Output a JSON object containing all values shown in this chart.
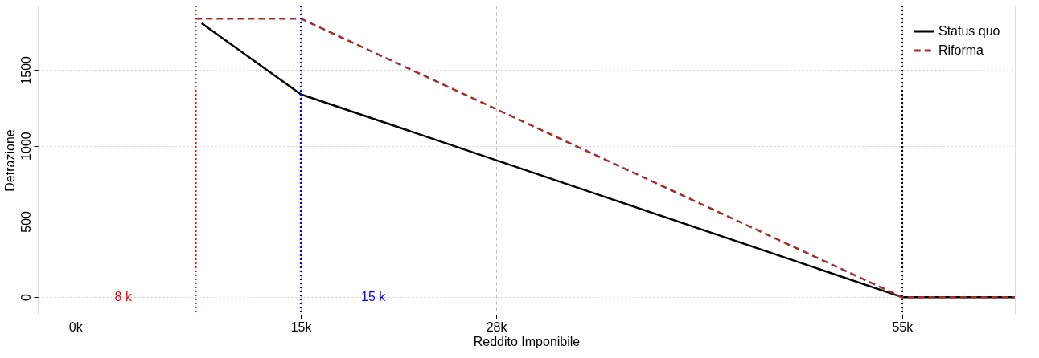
{
  "chart_data": {
    "type": "line",
    "xlabel": "Reddito Imponibile",
    "ylabel": "Detrazione",
    "xlim": [
      -2.5,
      62.5
    ],
    "ylim": [
      -116,
      1926
    ],
    "xticks": [
      {
        "value": 0,
        "label": "0k"
      },
      {
        "value": 15,
        "label": "15k"
      },
      {
        "value": 28,
        "label": "28k"
      },
      {
        "value": 55,
        "label": "55k"
      }
    ],
    "yticks": [
      0,
      500,
      {
        "value": 1000,
        "label": "1000"
      },
      {
        "value": 1500,
        "label": "1500"
      }
    ],
    "series": [
      {
        "name": "Status quo",
        "color": "#000000",
        "line_style": "solid",
        "x": [
          8.4,
          15,
          55,
          62.5
        ],
        "values": [
          1810,
          1340,
          0,
          0
        ]
      },
      {
        "name": "Riforma",
        "color": "#a52a2a",
        "line_style": "dashed",
        "x": [
          8,
          15,
          55,
          62.5
        ],
        "values": [
          1840,
          1840,
          0,
          0
        ]
      }
    ],
    "ref_lines": [
      {
        "axis": "x",
        "value": 8,
        "color": "#ff0000",
        "line_style": "dotted",
        "label": "8 k"
      },
      {
        "axis": "x",
        "value": 15,
        "color": "#0000ff",
        "line_style": "dotted",
        "label": "15 k"
      },
      {
        "axis": "x",
        "value": 55,
        "color": "#000000",
        "line_style": "dotted"
      }
    ],
    "grid": true,
    "legend": "top right",
    "marker": "none"
  }
}
